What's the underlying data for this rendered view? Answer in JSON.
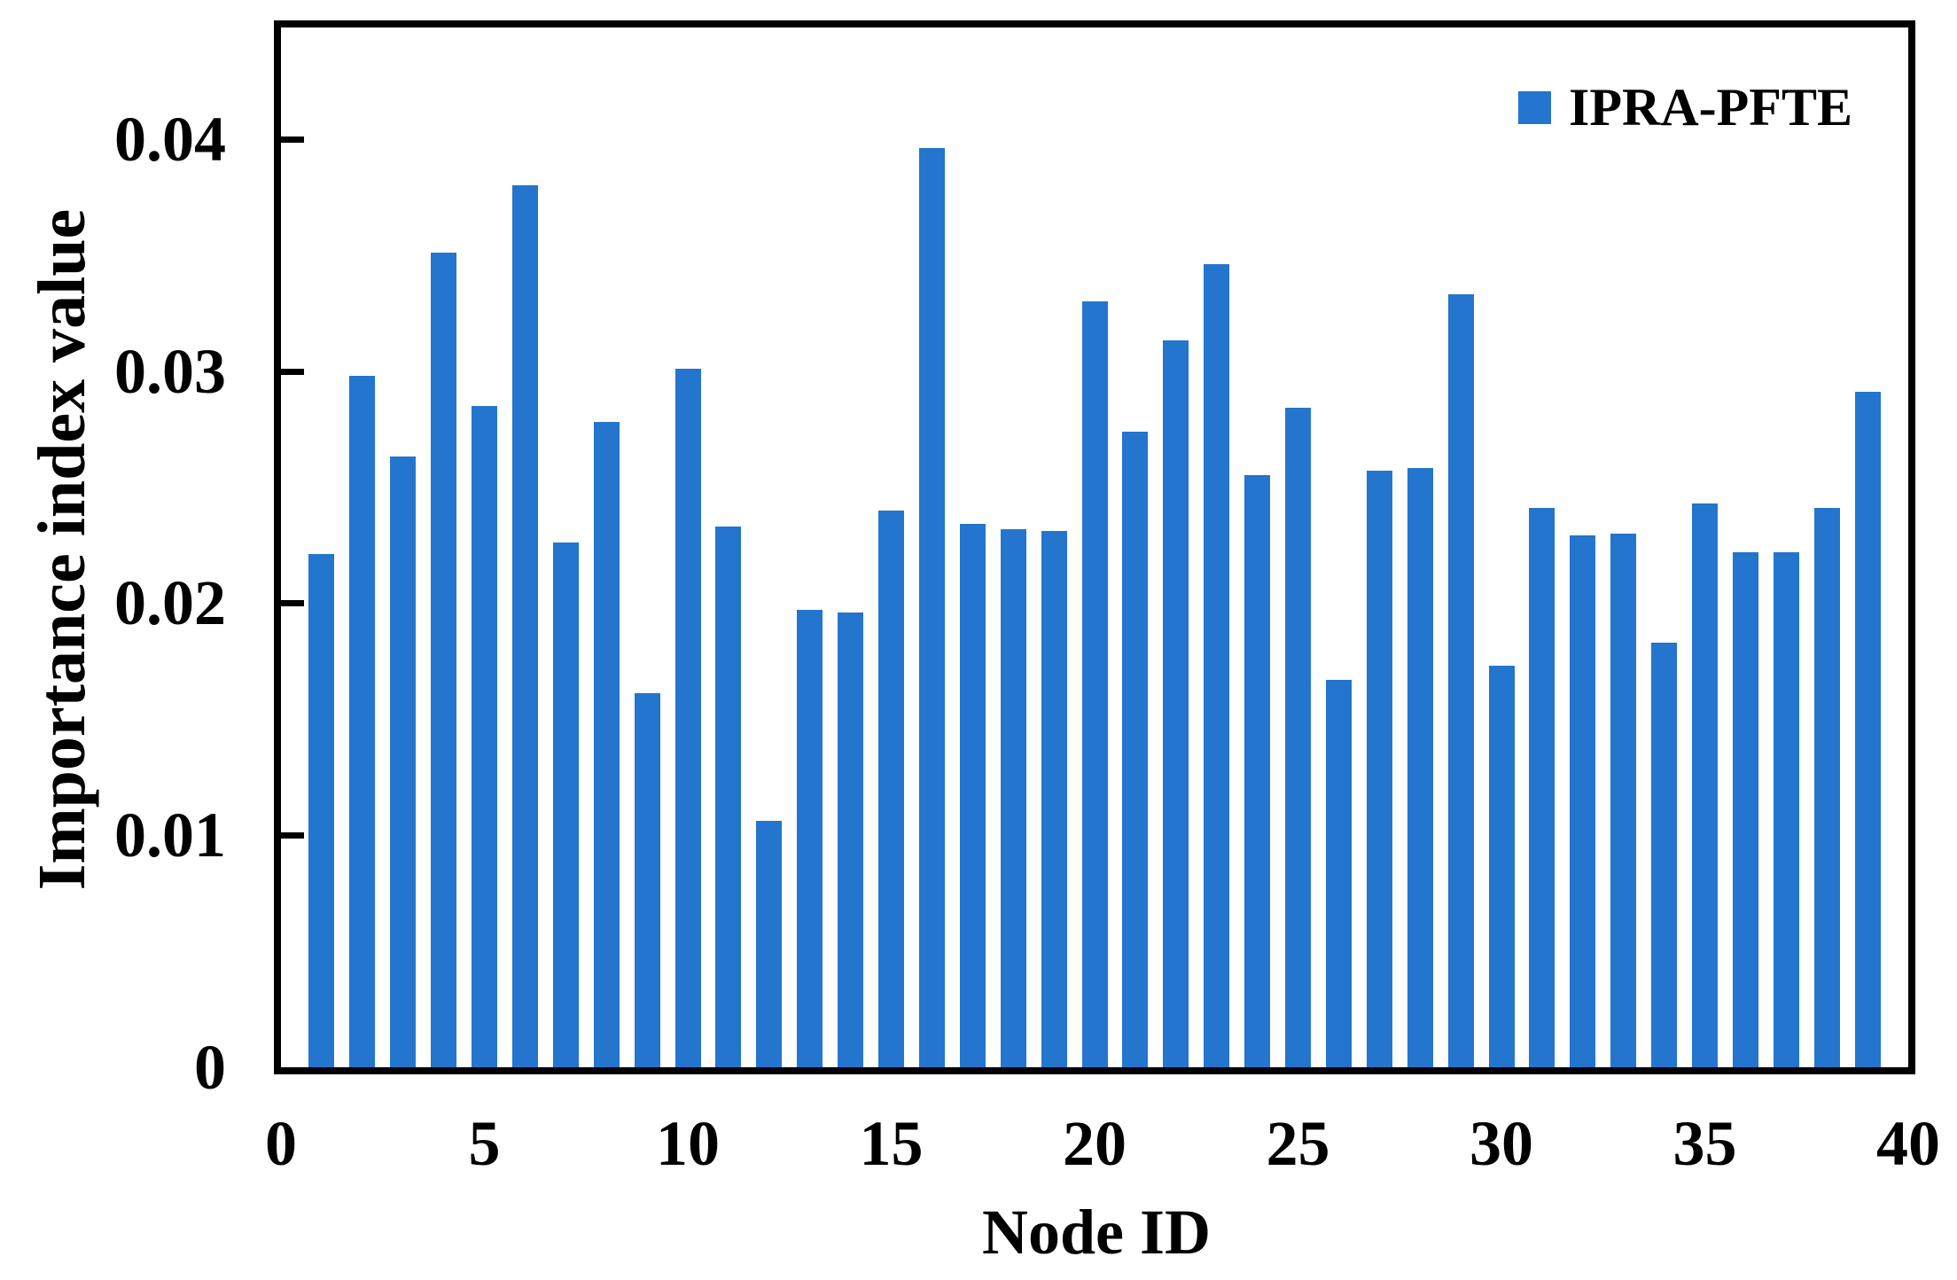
{
  "figure": {
    "kind": "bar-chart-figure",
    "background": "#ffffff",
    "text_color": "#000000"
  },
  "legend": {
    "label": "IPRA-PFTE",
    "swatch_color": "#2375CE",
    "position": "top-right"
  },
  "axes": {
    "x": {
      "title": "Node ID",
      "min": 0,
      "max": 40,
      "tick_labels": [
        "0",
        "5",
        "10",
        "15",
        "20",
        "25",
        "30",
        "35",
        "40"
      ],
      "tick_values": [
        0,
        5,
        10,
        15,
        20,
        25,
        30,
        35,
        40
      ]
    },
    "y": {
      "title": "Importance index value",
      "min": 0,
      "max": 0.0448,
      "tick_labels": [
        "0",
        "0.01",
        "0.02",
        "0.03",
        "0.04"
      ],
      "tick_values": [
        0,
        0.01,
        0.02,
        0.03,
        0.04
      ]
    }
  },
  "chart_data": {
    "type": "bar",
    "title": "",
    "xlabel": "Node ID",
    "ylabel": "Importance index value",
    "legend": [
      "IPRA-PFTE"
    ],
    "legend_position": "top-right",
    "grid": false,
    "bar_color": "#2375CE",
    "xlim": [
      0,
      40
    ],
    "ylim": [
      0,
      0.0448
    ],
    "x": [
      1,
      2,
      3,
      4,
      5,
      6,
      7,
      8,
      9,
      10,
      11,
      12,
      13,
      14,
      15,
      16,
      17,
      18,
      19,
      20,
      21,
      22,
      23,
      24,
      25,
      26,
      27,
      28,
      29,
      30,
      31,
      32,
      33,
      34,
      35,
      36,
      37,
      38,
      39
    ],
    "values": [
      0.0221,
      0.0298,
      0.0263,
      0.0351,
      0.0285,
      0.038,
      0.0226,
      0.0278,
      0.0161,
      0.0301,
      0.0233,
      0.0106,
      0.0197,
      0.0196,
      0.024,
      0.0396,
      0.0234,
      0.0232,
      0.0231,
      0.033,
      0.0274,
      0.0313,
      0.0346,
      0.0255,
      0.0284,
      0.0167,
      0.0257,
      0.0258,
      0.0333,
      0.0173,
      0.0241,
      0.0229,
      0.023,
      0.0183,
      0.0243,
      0.0222,
      0.0222,
      0.0241,
      0.0291
    ]
  }
}
